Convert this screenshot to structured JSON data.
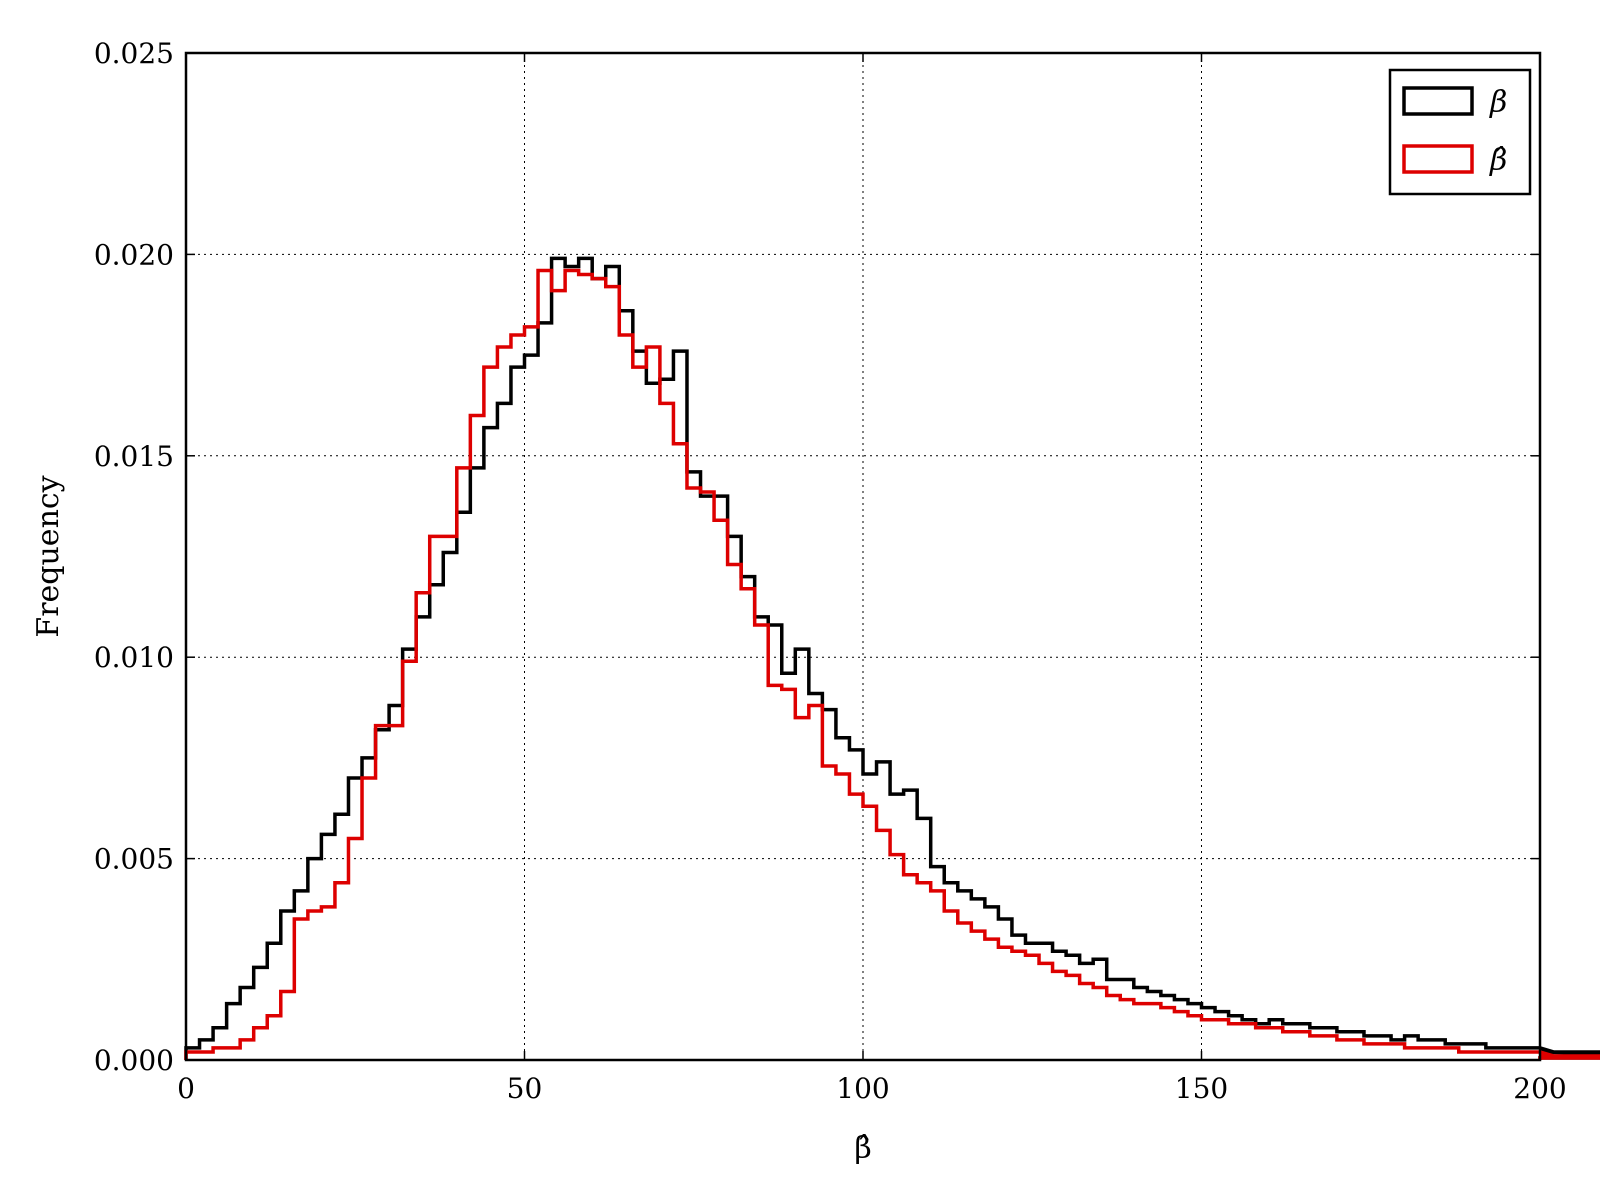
{
  "chart_data": {
    "type": "histogram",
    "xlabel": "β̂",
    "ylabel": "Frequency",
    "xlim": [
      0,
      200
    ],
    "ylim": [
      0,
      0.025
    ],
    "x_ticks": [
      0,
      50,
      100,
      150,
      200
    ],
    "y_ticks": [
      "0.000",
      "0.005",
      "0.010",
      "0.015",
      "0.020",
      "0.025"
    ],
    "grid": true,
    "legend_position": "top-right",
    "bin_width": 2,
    "series": [
      {
        "name": "β",
        "color": "#000000",
        "values": [
          0.0003,
          0.0005,
          0.0008,
          0.0014,
          0.0018,
          0.0023,
          0.0029,
          0.0037,
          0.0042,
          0.005,
          0.0056,
          0.0061,
          0.007,
          0.0075,
          0.0082,
          0.0088,
          0.0102,
          0.011,
          0.0118,
          0.0126,
          0.0136,
          0.0147,
          0.0157,
          0.0163,
          0.0172,
          0.0175,
          0.0183,
          0.0199,
          0.0197,
          0.0199,
          0.0194,
          0.0197,
          0.0186,
          0.0176,
          0.0168,
          0.0169,
          0.0176,
          0.0146,
          0.014,
          0.014,
          0.013,
          0.012,
          0.011,
          0.0108,
          0.0096,
          0.0102,
          0.0091,
          0.0087,
          0.008,
          0.0077,
          0.0071,
          0.0074,
          0.0066,
          0.0067,
          0.006,
          0.0048,
          0.0044,
          0.0042,
          0.004,
          0.0038,
          0.0035,
          0.0031,
          0.0029,
          0.0029,
          0.0027,
          0.0026,
          0.0024,
          0.0025,
          0.002,
          0.002,
          0.0018,
          0.0017,
          0.0016,
          0.0015,
          0.0014,
          0.0013,
          0.0012,
          0.0011,
          0.001,
          0.0009,
          0.001,
          0.0009,
          0.0009,
          0.0008,
          0.0008,
          0.0007,
          0.0007,
          0.0006,
          0.0006,
          0.0005,
          0.0006,
          0.0005,
          0.0005,
          0.0004,
          0.0004,
          0.0004,
          0.0003,
          0.0003,
          0.0003,
          0.0003,
          0.0003,
          0.0002,
          0.0002,
          0.0002,
          0.0002,
          0.0002,
          0.0002,
          0.0002,
          0.0002,
          0.0002,
          0.0002,
          0.0002,
          0.0002,
          0.0002,
          0.0001,
          0.0001,
          0.0001,
          0.0001,
          0.0001,
          0.0001,
          0.0001,
          0.0001,
          0.0001,
          0.0001,
          0.0001,
          0.0001,
          0.0001,
          0.0001,
          0.0001,
          0.0001,
          0.0001,
          0.0001,
          0.0001,
          0.0001,
          0.0001,
          0.0001,
          0.0001,
          0.0001,
          0.0001,
          5e-05,
          5e-05,
          5e-05,
          5e-05,
          5e-05,
          5e-05,
          5e-05,
          5e-05,
          5e-05,
          5e-05,
          5e-05,
          5e-05
        ]
      },
      {
        "name": "β̂",
        "color": "#dd0000",
        "values": [
          0.0002,
          0.0002,
          0.0003,
          0.0003,
          0.0005,
          0.0008,
          0.0011,
          0.0017,
          0.0035,
          0.0037,
          0.0038,
          0.0044,
          0.0055,
          0.007,
          0.0083,
          0.0083,
          0.0099,
          0.0116,
          0.013,
          0.013,
          0.0147,
          0.016,
          0.0172,
          0.0177,
          0.018,
          0.0182,
          0.0196,
          0.0191,
          0.0196,
          0.0195,
          0.0194,
          0.0192,
          0.018,
          0.0172,
          0.0177,
          0.0163,
          0.0153,
          0.0142,
          0.0141,
          0.0134,
          0.0123,
          0.0117,
          0.0108,
          0.0093,
          0.0092,
          0.0085,
          0.0088,
          0.0073,
          0.0071,
          0.0066,
          0.0063,
          0.0057,
          0.0051,
          0.0046,
          0.0044,
          0.0042,
          0.0037,
          0.0034,
          0.0032,
          0.003,
          0.0028,
          0.0027,
          0.0026,
          0.0024,
          0.0022,
          0.0021,
          0.0019,
          0.0018,
          0.0016,
          0.0015,
          0.0014,
          0.0014,
          0.0013,
          0.0012,
          0.0011,
          0.001,
          0.001,
          0.0009,
          0.0009,
          0.0008,
          0.0008,
          0.0007,
          0.0007,
          0.0006,
          0.0006,
          0.0005,
          0.0005,
          0.0004,
          0.0004,
          0.0004,
          0.0003,
          0.0003,
          0.0003,
          0.0003,
          0.0002,
          0.0002,
          0.0002,
          0.0002,
          0.0002,
          0.0002,
          0.0002,
          0.0001,
          0.0001,
          0.0001,
          0.0001,
          0.0001,
          0.0001,
          0.0001,
          0.0001,
          0.0001,
          0.0001,
          0.0001,
          0.0001,
          0.0001,
          0.0001,
          0.0001,
          0.0001,
          0.0001,
          0.0001,
          0.0001,
          0.0001,
          0.0001,
          0.0001,
          0.0001,
          0.0001,
          0.0001,
          0.0001,
          0.0001,
          0.0001,
          0.0001,
          0.0001,
          0.0001,
          0.0001,
          0.0001,
          5e-05,
          5e-05,
          5e-05,
          5e-05,
          5e-05,
          5e-05,
          5e-05,
          5e-05,
          5e-05,
          5e-05,
          5e-05,
          5e-05,
          5e-05,
          5e-05,
          5e-05,
          5e-05
        ]
      }
    ]
  }
}
